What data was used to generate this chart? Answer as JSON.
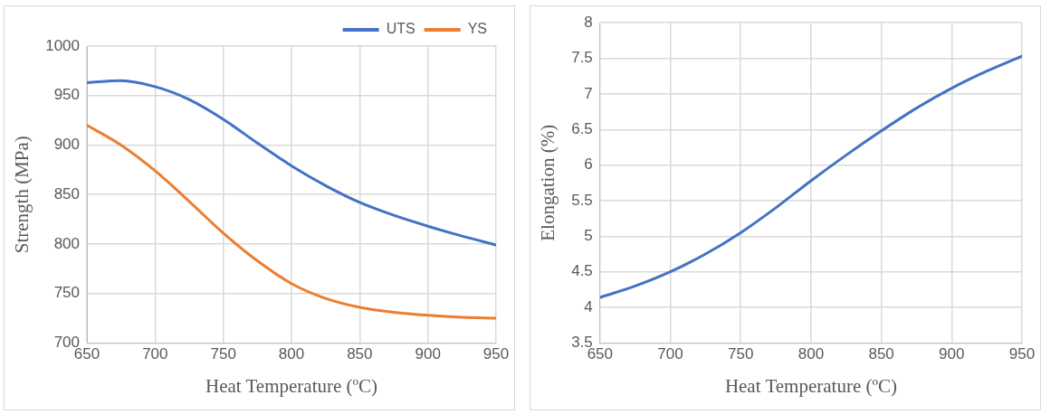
{
  "chart_data": [
    {
      "type": "line",
      "xlabel": "Heat Temperature (ºC)",
      "ylabel": "Strength (MPa)",
      "x": [
        650,
        675,
        700,
        725,
        750,
        775,
        800,
        825,
        850,
        875,
        900,
        925,
        950
      ],
      "series": [
        {
          "name": "UTS",
          "color": "#4472c4",
          "values": [
            963,
            965,
            959,
            946,
            926,
            902,
            879,
            859,
            842,
            829,
            818,
            808,
            799
          ]
        },
        {
          "name": "YS",
          "color": "#ed7d31",
          "values": [
            920,
            900,
            874,
            843,
            811,
            783,
            760,
            745,
            736,
            731,
            728,
            726,
            725
          ]
        }
      ],
      "xlim": [
        650,
        950
      ],
      "xticks": [
        650,
        700,
        750,
        800,
        850,
        900,
        950
      ],
      "ylim": [
        700,
        1000
      ],
      "yticks": [
        700,
        750,
        800,
        850,
        900,
        950,
        1000
      ],
      "grid": true,
      "legend": "top right",
      "marker": "none",
      "line_style": "solid"
    },
    {
      "type": "line",
      "xlabel": "Heat Temperature (ºC)",
      "ylabel": "Elongation (%)",
      "x": [
        650,
        675,
        700,
        725,
        750,
        775,
        800,
        825,
        850,
        875,
        900,
        925,
        950
      ],
      "series": [
        {
          "color": "#4472c4",
          "values": [
            4.14,
            4.3,
            4.5,
            4.75,
            5.05,
            5.4,
            5.78,
            6.14,
            6.48,
            6.8,
            7.08,
            7.32,
            7.53
          ]
        }
      ],
      "xlim": [
        650,
        950
      ],
      "xticks": [
        650,
        700,
        750,
        800,
        850,
        900,
        950
      ],
      "ylim": [
        3.5,
        8
      ],
      "yticks": [
        3.5,
        4,
        4.5,
        5,
        5.5,
        6,
        6.5,
        7,
        7.5,
        8
      ],
      "grid": true,
      "legend": false,
      "marker": "none",
      "line_style": "solid"
    }
  ]
}
